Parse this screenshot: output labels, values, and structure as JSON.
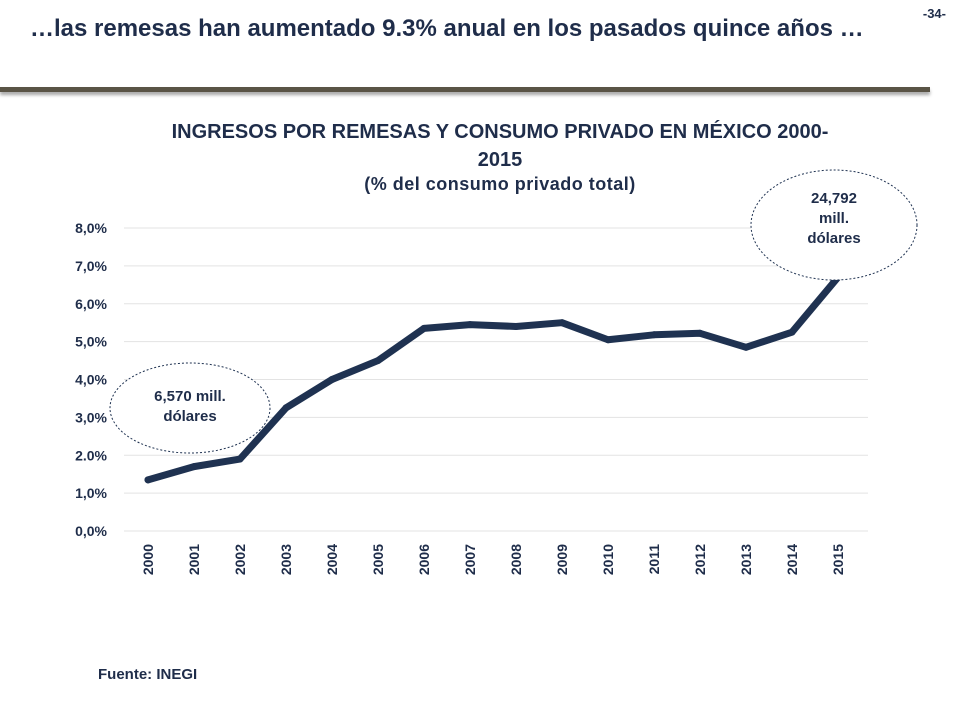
{
  "page": {
    "number": "-34-",
    "headline": "…las remesas han aumentado 9.3% anual en los pasados quince años …",
    "source": "Fuente: INEGI"
  },
  "colors": {
    "line": "#1f3251",
    "text": "#1f2d4a",
    "grid": "#e3e3e3",
    "callout_border": "#1f3251",
    "rule": "#5a5446"
  },
  "chart_data": {
    "type": "line",
    "title": "INGRESOS POR REMESAS Y CONSUMO PRIVADO EN MÉXICO 2000-2015",
    "subtitle": "(% del consumo privado total)",
    "xlabel": "",
    "ylabel": "",
    "categories": [
      "2000",
      "2001",
      "2002",
      "2003",
      "2004",
      "2005",
      "2006",
      "2007",
      "2008",
      "2009",
      "2010",
      "2011",
      "2012",
      "2013",
      "2014",
      "2015"
    ],
    "series": [
      {
        "values": [
          1.35,
          1.7,
          1.9,
          3.25,
          4.0,
          4.5,
          5.35,
          5.45,
          5.4,
          5.5,
          5.05,
          5.18,
          5.22,
          4.85,
          5.25,
          6.7
        ]
      }
    ],
    "ylim": [
      0,
      8
    ],
    "yticks": [
      0,
      1,
      2,
      3,
      4,
      5,
      6,
      7,
      8
    ],
    "ytick_labels": [
      "0,0%",
      "1,0%",
      "2.0%",
      "3,0%",
      "4,0%",
      "5,0%",
      "6,0%",
      "7,0%",
      "8,0%"
    ],
    "grid": true,
    "legend": "none",
    "annotations": [
      {
        "text_lines": [
          "6,570 mill.",
          "dólares"
        ],
        "attached_to": "2000"
      },
      {
        "text_lines": [
          "24,792",
          "mill.",
          "dólares"
        ],
        "attached_to": "2015"
      }
    ]
  }
}
